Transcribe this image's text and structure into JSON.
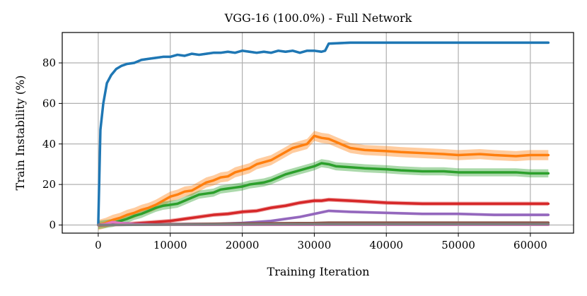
{
  "chart_data": {
    "type": "line",
    "title": "VGG-16 (100.0%)  - Full Network",
    "xlabel": "Training Iteration",
    "ylabel": "Train Instability (%)",
    "xlim": [
      -5000,
      66000
    ],
    "ylim": [
      -4,
      95
    ],
    "xticks": [
      0,
      10000,
      20000,
      30000,
      40000,
      50000,
      60000
    ],
    "xtick_labels": [
      "0",
      "10000",
      "20000",
      "30000",
      "40000",
      "50000",
      "60000"
    ],
    "yticks": [
      0,
      20,
      40,
      60,
      80
    ],
    "ytick_labels": [
      "0",
      "20",
      "40",
      "60",
      "80"
    ],
    "grid": true,
    "legend": "none",
    "series": [
      {
        "color": "#1f77b4",
        "band": 0.6,
        "x": [
          0,
          300,
          700,
          1200,
          1800,
          2500,
          3200,
          4000,
          5000,
          6000,
          7000,
          8000,
          9000,
          10000,
          11000,
          12000,
          13000,
          14000,
          15000,
          16000,
          17000,
          18000,
          19000,
          20000,
          21000,
          22000,
          23000,
          24000,
          25000,
          26000,
          27000,
          28000,
          29000,
          30000,
          31000,
          31500,
          32000,
          35000,
          40000,
          45000,
          50000,
          55000,
          60000,
          62500
        ],
        "y": [
          0,
          47,
          60,
          70,
          74,
          77,
          78.5,
          79.5,
          80,
          81.5,
          82,
          82.5,
          83,
          83,
          84,
          83.5,
          84.5,
          84,
          84.5,
          85,
          85,
          85.5,
          85,
          86,
          85.5,
          85,
          85.5,
          85,
          86,
          85.5,
          86,
          85,
          86,
          86,
          85.5,
          86,
          89.5,
          90,
          90,
          90,
          90,
          90,
          90,
          90
        ]
      },
      {
        "color": "#ff7f0e",
        "band": 2.5,
        "x": [
          0,
          1000,
          2000,
          3000,
          4000,
          5000,
          6000,
          7000,
          8000,
          9000,
          10000,
          11000,
          12000,
          13000,
          14000,
          15000,
          16000,
          17000,
          18000,
          19000,
          20000,
          21000,
          22000,
          23000,
          24000,
          25000,
          26000,
          27000,
          28000,
          29000,
          30000,
          31000,
          32000,
          33000,
          34000,
          35000,
          37000,
          40000,
          42000,
          45000,
          48000,
          50000,
          53000,
          55000,
          58000,
          60000,
          62500
        ],
        "y": [
          0,
          1,
          2.5,
          3.5,
          5,
          6,
          7.5,
          8.5,
          10,
          12,
          14,
          15,
          16.5,
          17,
          19,
          21,
          22,
          23.5,
          24,
          26,
          27,
          28,
          30,
          31,
          32,
          34,
          36,
          38,
          39,
          40,
          44,
          43,
          42.5,
          41,
          39.5,
          38,
          37,
          36.5,
          36,
          35.5,
          35,
          34.5,
          35,
          34.5,
          34,
          34.5,
          34.5
        ]
      },
      {
        "color": "#2ca02c",
        "band": 2.0,
        "x": [
          0,
          1000,
          2000,
          3000,
          4000,
          5000,
          6000,
          7000,
          8000,
          9000,
          10000,
          11000,
          12000,
          13000,
          14000,
          15000,
          16000,
          17000,
          18000,
          19000,
          20000,
          21000,
          22000,
          23000,
          24000,
          25000,
          26000,
          27000,
          28000,
          29000,
          30000,
          31000,
          32000,
          33000,
          35000,
          37000,
          40000,
          42000,
          45000,
          48000,
          50000,
          53000,
          55000,
          58000,
          60000,
          62500
        ],
        "y": [
          0,
          0.5,
          1,
          2,
          3,
          4.5,
          5.5,
          7,
          8.5,
          9.5,
          10,
          10.5,
          12,
          13.5,
          15,
          15.5,
          16,
          17.5,
          18,
          18.5,
          19,
          20,
          20.5,
          21,
          22,
          23.5,
          25,
          26,
          27,
          28,
          29,
          30.5,
          30,
          29,
          28.5,
          28,
          27.5,
          27,
          26.5,
          26.5,
          26,
          26,
          26,
          26,
          25.5,
          25.5
        ]
      },
      {
        "color": "#d62728",
        "band": 1.0,
        "x": [
          0,
          2000,
          4000,
          6000,
          8000,
          10000,
          12000,
          14000,
          16000,
          18000,
          20000,
          22000,
          24000,
          26000,
          28000,
          30000,
          31000,
          32000,
          35000,
          40000,
          45000,
          50000,
          55000,
          60000,
          62500
        ],
        "y": [
          0,
          0.3,
          0.5,
          1,
          1.5,
          2,
          3,
          4,
          5,
          5.5,
          6.5,
          7,
          8.5,
          9.5,
          11,
          12,
          12,
          12.5,
          12,
          11,
          10.5,
          10.5,
          10.5,
          10.5,
          10.5
        ]
      },
      {
        "color": "#9467bd",
        "band": 0.7,
        "x": [
          0,
          1500,
          3000,
          5000,
          8000,
          12000,
          16000,
          20000,
          22000,
          24000,
          26000,
          28000,
          30000,
          32000,
          35000,
          40000,
          45000,
          50000,
          55000,
          60000,
          62500
        ],
        "y": [
          0,
          0.5,
          1,
          0.5,
          0.3,
          0.5,
          0.5,
          1,
          1.5,
          2,
          3,
          4,
          5.5,
          7,
          6.5,
          6,
          5.5,
          5.5,
          5,
          5,
          5
        ]
      },
      {
        "color": "#8c564b",
        "band": 0.3,
        "x": [
          0,
          10000,
          20000,
          30000,
          32000,
          40000,
          50000,
          62500
        ],
        "y": [
          0,
          0.4,
          0.8,
          1.0,
          1.2,
          1.2,
          1.2,
          1.2
        ]
      },
      {
        "color": "#e377c2",
        "band": 0.5,
        "x": [
          0,
          1000,
          2000,
          3000,
          4000,
          5000,
          8000,
          15000,
          30000,
          62500
        ],
        "y": [
          0,
          0.5,
          1.5,
          1,
          0.6,
          0.3,
          0.2,
          0.1,
          0.1,
          0.1
        ]
      },
      {
        "color": "#7f7f7f",
        "band": 0.3,
        "x": [
          0,
          10000,
          20000,
          30000,
          40000,
          50000,
          62500
        ],
        "y": [
          0,
          0.2,
          0.3,
          0.4,
          0.4,
          0.4,
          0.4
        ]
      }
    ]
  }
}
